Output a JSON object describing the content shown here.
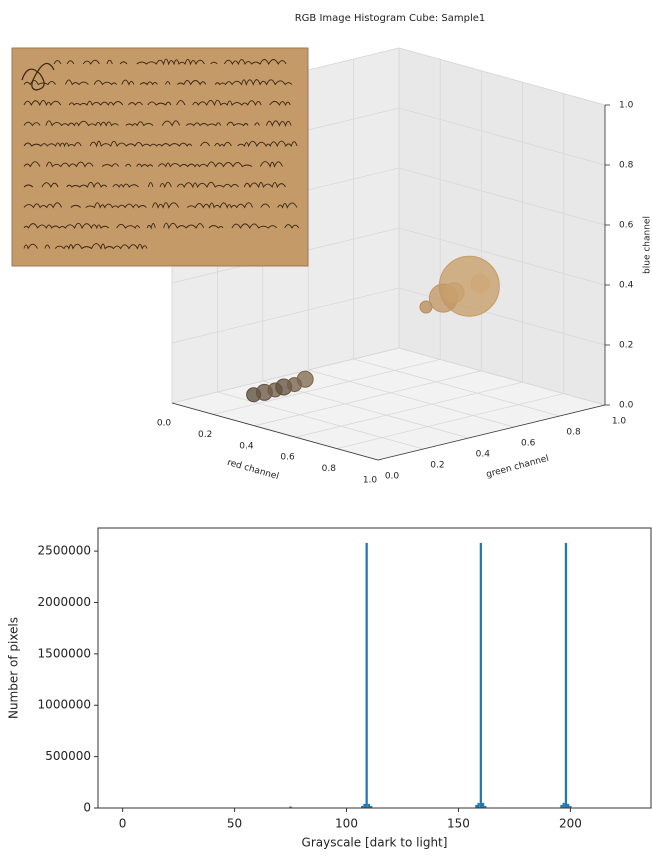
{
  "chart_data": [
    {
      "type": "scatter3d",
      "title": "RGB Image Histogram Cube: Sample1",
      "xlabel": "red channel",
      "ylabel": "green channel",
      "zlabel": "blue channel",
      "xlim": [
        0,
        1
      ],
      "ylim": [
        0,
        1
      ],
      "zlim": [
        0,
        1
      ],
      "xticks": [
        {
          "value": 0,
          "label": "0.0"
        },
        0.2,
        0.4,
        0.6,
        0.8,
        {
          "value": 1,
          "label": "1.0"
        }
      ],
      "yticks": [
        {
          "value": 0,
          "label": "0.0"
        },
        0.2,
        0.4,
        0.6,
        0.8,
        {
          "value": 1,
          "label": "1.0"
        }
      ],
      "zticks": [
        {
          "value": 0,
          "label": "0.0"
        },
        0.2,
        0.4,
        0.6,
        0.8,
        {
          "value": 1,
          "label": "1.0"
        }
      ],
      "points": {
        "x": [
          0.76,
          0.7,
          0.73,
          0.79,
          0.66,
          0.22,
          0.25,
          0.28,
          0.3,
          0.33,
          0.36
        ],
        "y": [
          0.62,
          0.56,
          0.58,
          0.64,
          0.52,
          0.16,
          0.18,
          0.2,
          0.22,
          0.24,
          0.26
        ],
        "z": [
          0.42,
          0.38,
          0.4,
          0.43,
          0.35,
          0.04,
          0.05,
          0.06,
          0.07,
          0.08,
          0.1
        ],
        "sizes": [
          30,
          14,
          10,
          9,
          6,
          7,
          8,
          7,
          8,
          7,
          8
        ],
        "colors": [
          "#c79c66",
          "#c29561",
          "#c8a06d",
          "#cfa774",
          "#b88a56",
          "#5a4a38",
          "#655340",
          "#6f5a43",
          "#604e3b",
          "#745e46",
          "#7d6548"
        ]
      }
    },
    {
      "type": "bar",
      "xlabel": "Grayscale [dark to light]",
      "ylabel": "Number of pixels",
      "xlim": [
        -11,
        236
      ],
      "ylim": [
        0,
        2725000
      ],
      "xticks": [
        0,
        50,
        100,
        150,
        200
      ],
      "yticks": [
        0,
        500000,
        1000000,
        1500000,
        2000000,
        2500000
      ],
      "color": "#1f77b4",
      "x": [
        75,
        107,
        108,
        109,
        110,
        111,
        158,
        159,
        160,
        161,
        162,
        196,
        197,
        198,
        199,
        200
      ],
      "values": [
        15000,
        20000,
        40000,
        2580000,
        40000,
        20000,
        30000,
        50000,
        2580000,
        50000,
        20000,
        30000,
        50000,
        2580000,
        40000,
        20000
      ]
    }
  ]
}
